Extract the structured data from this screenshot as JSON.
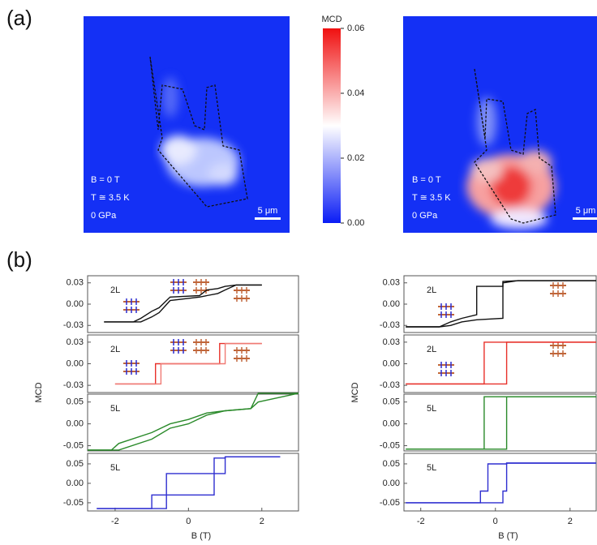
{
  "panel_labels": [
    "(a)",
    "(b)"
  ],
  "maps": [
    {
      "annotations": [
        "B = 0 T",
        "T ≅ 3.5 K",
        "0 GPa"
      ],
      "scale_bar": "5 μm"
    },
    {
      "annotations": [
        "B = 0 T",
        "T ≅ 3.5 K",
        "0 GPa"
      ],
      "scale_bar": "5 μm"
    }
  ],
  "colorbar": {
    "title": "MCD",
    "lim": [
      0,
      0.06
    ],
    "ticks": [
      {
        "value": 0,
        "label": "0.00"
      },
      0.02,
      0.04,
      0.06
    ]
  },
  "chart_data": [
    {
      "type": "line",
      "label": "2L",
      "xlim": [
        -2.75,
        3.0
      ],
      "ylim": [
        -0.04,
        0.04
      ],
      "yticks": [
        0.03,
        {
          "value": 0,
          "label": "0.00"
        },
        -0.03
      ],
      "x": [
        -2.3,
        -1.5,
        -1.3,
        -1.0,
        -0.8,
        -0.5,
        0.3,
        0.5,
        0.8,
        1.0,
        1.3,
        2.0
      ],
      "series": [
        {
          "color": "#111111",
          "values": [
            -0.025,
            -0.025,
            -0.02,
            -0.01,
            -0.005,
            0.01,
            0.012,
            0.02,
            0.022,
            0.025,
            0.027,
            0.027
          ]
        },
        {
          "color": "#111111",
          "values": [
            -0.025,
            -0.025,
            -0.025,
            -0.018,
            -0.012,
            0.005,
            0.01,
            0.012,
            0.015,
            0.02,
            0.027,
            0.027
          ]
        }
      ]
    },
    {
      "type": "line",
      "label": "2L",
      "ylabel": "MCD",
      "xlim": [
        -2.75,
        3.0
      ],
      "ylim": [
        -0.04,
        0.04
      ],
      "yticks": [
        0.03,
        {
          "value": 0,
          "label": "0.00"
        },
        -0.03
      ],
      "x": [
        -2.0,
        -0.9,
        -0.9,
        -0.75,
        -0.75,
        0.85,
        0.85,
        1.0,
        1.0,
        2.0
      ],
      "series": [
        {
          "color": "#e8312a",
          "values": [
            -0.028,
            -0.028,
            0,
            0,
            0,
            0,
            0.028,
            0.028,
            0.028,
            0.028
          ]
        },
        {
          "color": "#f07a74",
          "values": [
            -0.028,
            -0.028,
            -0.028,
            -0.028,
            0,
            0,
            0,
            0,
            0.028,
            0.028
          ]
        }
      ]
    },
    {
      "type": "line",
      "label": "5L",
      "xlim": [
        -2.75,
        3.0
      ],
      "ylim": [
        -0.062,
        0.068
      ],
      "yticks": [
        0.05,
        {
          "value": 0,
          "label": "0.00"
        },
        -0.05
      ],
      "x": [
        -2.75,
        -2.1,
        -1.9,
        -1.0,
        -0.5,
        0,
        0.5,
        1.0,
        1.7,
        1.9,
        3.0
      ],
      "series": [
        {
          "color": "#2a8a2a",
          "values": [
            -0.06,
            -0.06,
            -0.045,
            -0.02,
            0,
            0.01,
            0.025,
            0.03,
            0.035,
            0.07,
            0.07
          ]
        },
        {
          "color": "#2a8a2a",
          "values": [
            -0.06,
            -0.06,
            -0.06,
            -0.035,
            -0.01,
            0,
            0.02,
            0.03,
            0.035,
            0.05,
            0.07
          ]
        }
      ]
    },
    {
      "type": "line",
      "label": "5L",
      "xlabel": "B (T)",
      "xlim": [
        -2.75,
        3.0
      ],
      "ylim": [
        -0.071,
        0.077
      ],
      "yticks": [
        0.05,
        {
          "value": 0,
          "label": "0.00"
        },
        -0.05
      ],
      "xticks": [
        -2,
        0,
        2
      ],
      "x": [
        -2.5,
        -1.0,
        -1.0,
        -0.6,
        -0.6,
        0.7,
        0.7,
        1.0,
        1.0,
        2.5
      ],
      "series": [
        {
          "color": "#2f2fd0",
          "values": [
            -0.065,
            -0.065,
            -0.03,
            -0.03,
            0.025,
            0.025,
            0.065,
            0.065,
            0.068,
            0.068
          ]
        },
        {
          "color": "#2f2fd0",
          "values": [
            -0.065,
            -0.065,
            -0.065,
            -0.065,
            -0.03,
            -0.03,
            0.025,
            0.025,
            0.068,
            0.068
          ]
        }
      ]
    },
    {
      "type": "line",
      "label": "2L",
      "xlim": [
        -2.45,
        2.7
      ],
      "ylim": [
        -0.04,
        0.04
      ],
      "yticks": [
        0.03,
        {
          "value": 0,
          "label": "0.00"
        },
        -0.03
      ],
      "x": [
        -2.4,
        -1.5,
        -1.2,
        -0.9,
        -0.5,
        -0.5,
        0.2,
        0.2,
        0.6,
        2.7
      ],
      "series": [
        {
          "color": "#111111",
          "values": [
            -0.032,
            -0.032,
            -0.025,
            -0.02,
            -0.015,
            0.025,
            0.025,
            0.032,
            0.033,
            0.033
          ]
        },
        {
          "color": "#111111",
          "values": [
            -0.032,
            -0.032,
            -0.03,
            -0.025,
            -0.022,
            -0.022,
            -0.02,
            0.03,
            0.033,
            0.033
          ]
        }
      ]
    },
    {
      "type": "line",
      "label": "2L",
      "ylabel": "MCD",
      "xlim": [
        -2.45,
        2.7
      ],
      "ylim": [
        -0.04,
        0.04
      ],
      "yticks": [
        0.03,
        {
          "value": 0,
          "label": "0.00"
        },
        -0.03
      ],
      "x": [
        -2.4,
        -0.3,
        -0.3,
        0.3,
        0.3,
        2.7
      ],
      "series": [
        {
          "color": "#e8312a",
          "values": [
            -0.028,
            -0.028,
            0.03,
            0.03,
            0.03,
            0.03
          ]
        },
        {
          "color": "#e8312a",
          "values": [
            -0.028,
            -0.028,
            -0.028,
            -0.028,
            0.03,
            0.03
          ]
        }
      ]
    },
    {
      "type": "line",
      "label": "5L",
      "xlim": [
        -2.45,
        2.7
      ],
      "ylim": [
        -0.062,
        0.068
      ],
      "yticks": [
        0.05,
        {
          "value": 0,
          "label": "0.00"
        },
        -0.05
      ],
      "x": [
        -2.4,
        -0.3,
        -0.3,
        0.3,
        0.3,
        2.7
      ],
      "series": [
        {
          "color": "#2a8a2a",
          "values": [
            -0.058,
            -0.058,
            0.062,
            0.062,
            0.062,
            0.062
          ]
        },
        {
          "color": "#2a8a2a",
          "values": [
            -0.058,
            -0.058,
            -0.058,
            -0.058,
            0.062,
            0.062
          ]
        }
      ]
    },
    {
      "type": "line",
      "label": "5L",
      "xlabel": "B (T)",
      "xlim": [
        -2.45,
        2.7
      ],
      "ylim": [
        -0.071,
        0.077
      ],
      "yticks": [
        0.05,
        {
          "value": 0,
          "label": "0.00"
        },
        -0.05
      ],
      "xticks": [
        -2,
        0,
        2
      ],
      "x": [
        -2.4,
        -0.4,
        -0.4,
        -0.2,
        -0.2,
        0.2,
        0.2,
        0.3,
        0.3,
        2.7
      ],
      "series": [
        {
          "color": "#2f2fd0",
          "values": [
            -0.05,
            -0.05,
            -0.02,
            -0.02,
            0.05,
            0.05,
            0.05,
            0.05,
            0.052,
            0.052
          ]
        },
        {
          "color": "#2f2fd0",
          "values": [
            -0.05,
            -0.05,
            -0.05,
            -0.05,
            -0.05,
            -0.05,
            -0.02,
            -0.02,
            0.052,
            0.052
          ]
        }
      ]
    }
  ]
}
